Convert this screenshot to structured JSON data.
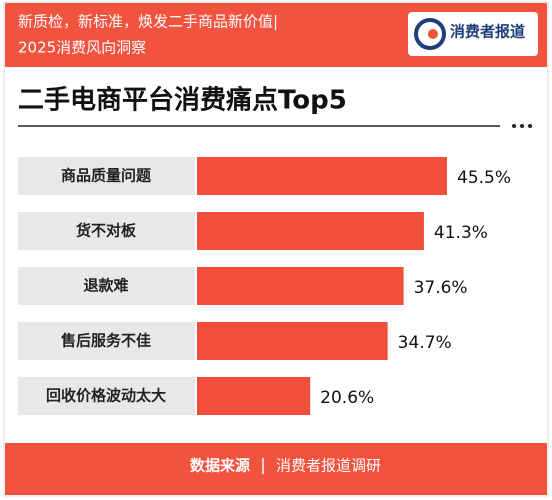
{
  "header": {
    "line1": "新质检，新标准，焕发二手商品新价值|",
    "line2": "2025消费风向洞察",
    "logo": "消费者报道"
  },
  "chart_data": {
    "type": "bar",
    "orientation": "horizontal",
    "title": "二手电商平台消费痛点Top5",
    "categories": [
      "商品质量问题",
      "货不对板",
      "退款难",
      "售后服务不佳",
      "回收价格波动太大"
    ],
    "values": [
      45.5,
      41.3,
      37.6,
      34.7,
      20.6
    ],
    "value_labels": [
      "45.5%",
      "41.3%",
      "37.6%",
      "34.7%",
      "20.6%"
    ],
    "color": "#f24e3c"
  },
  "footer": {
    "source_label": "数据来源",
    "source": "消费者报道调研"
  }
}
